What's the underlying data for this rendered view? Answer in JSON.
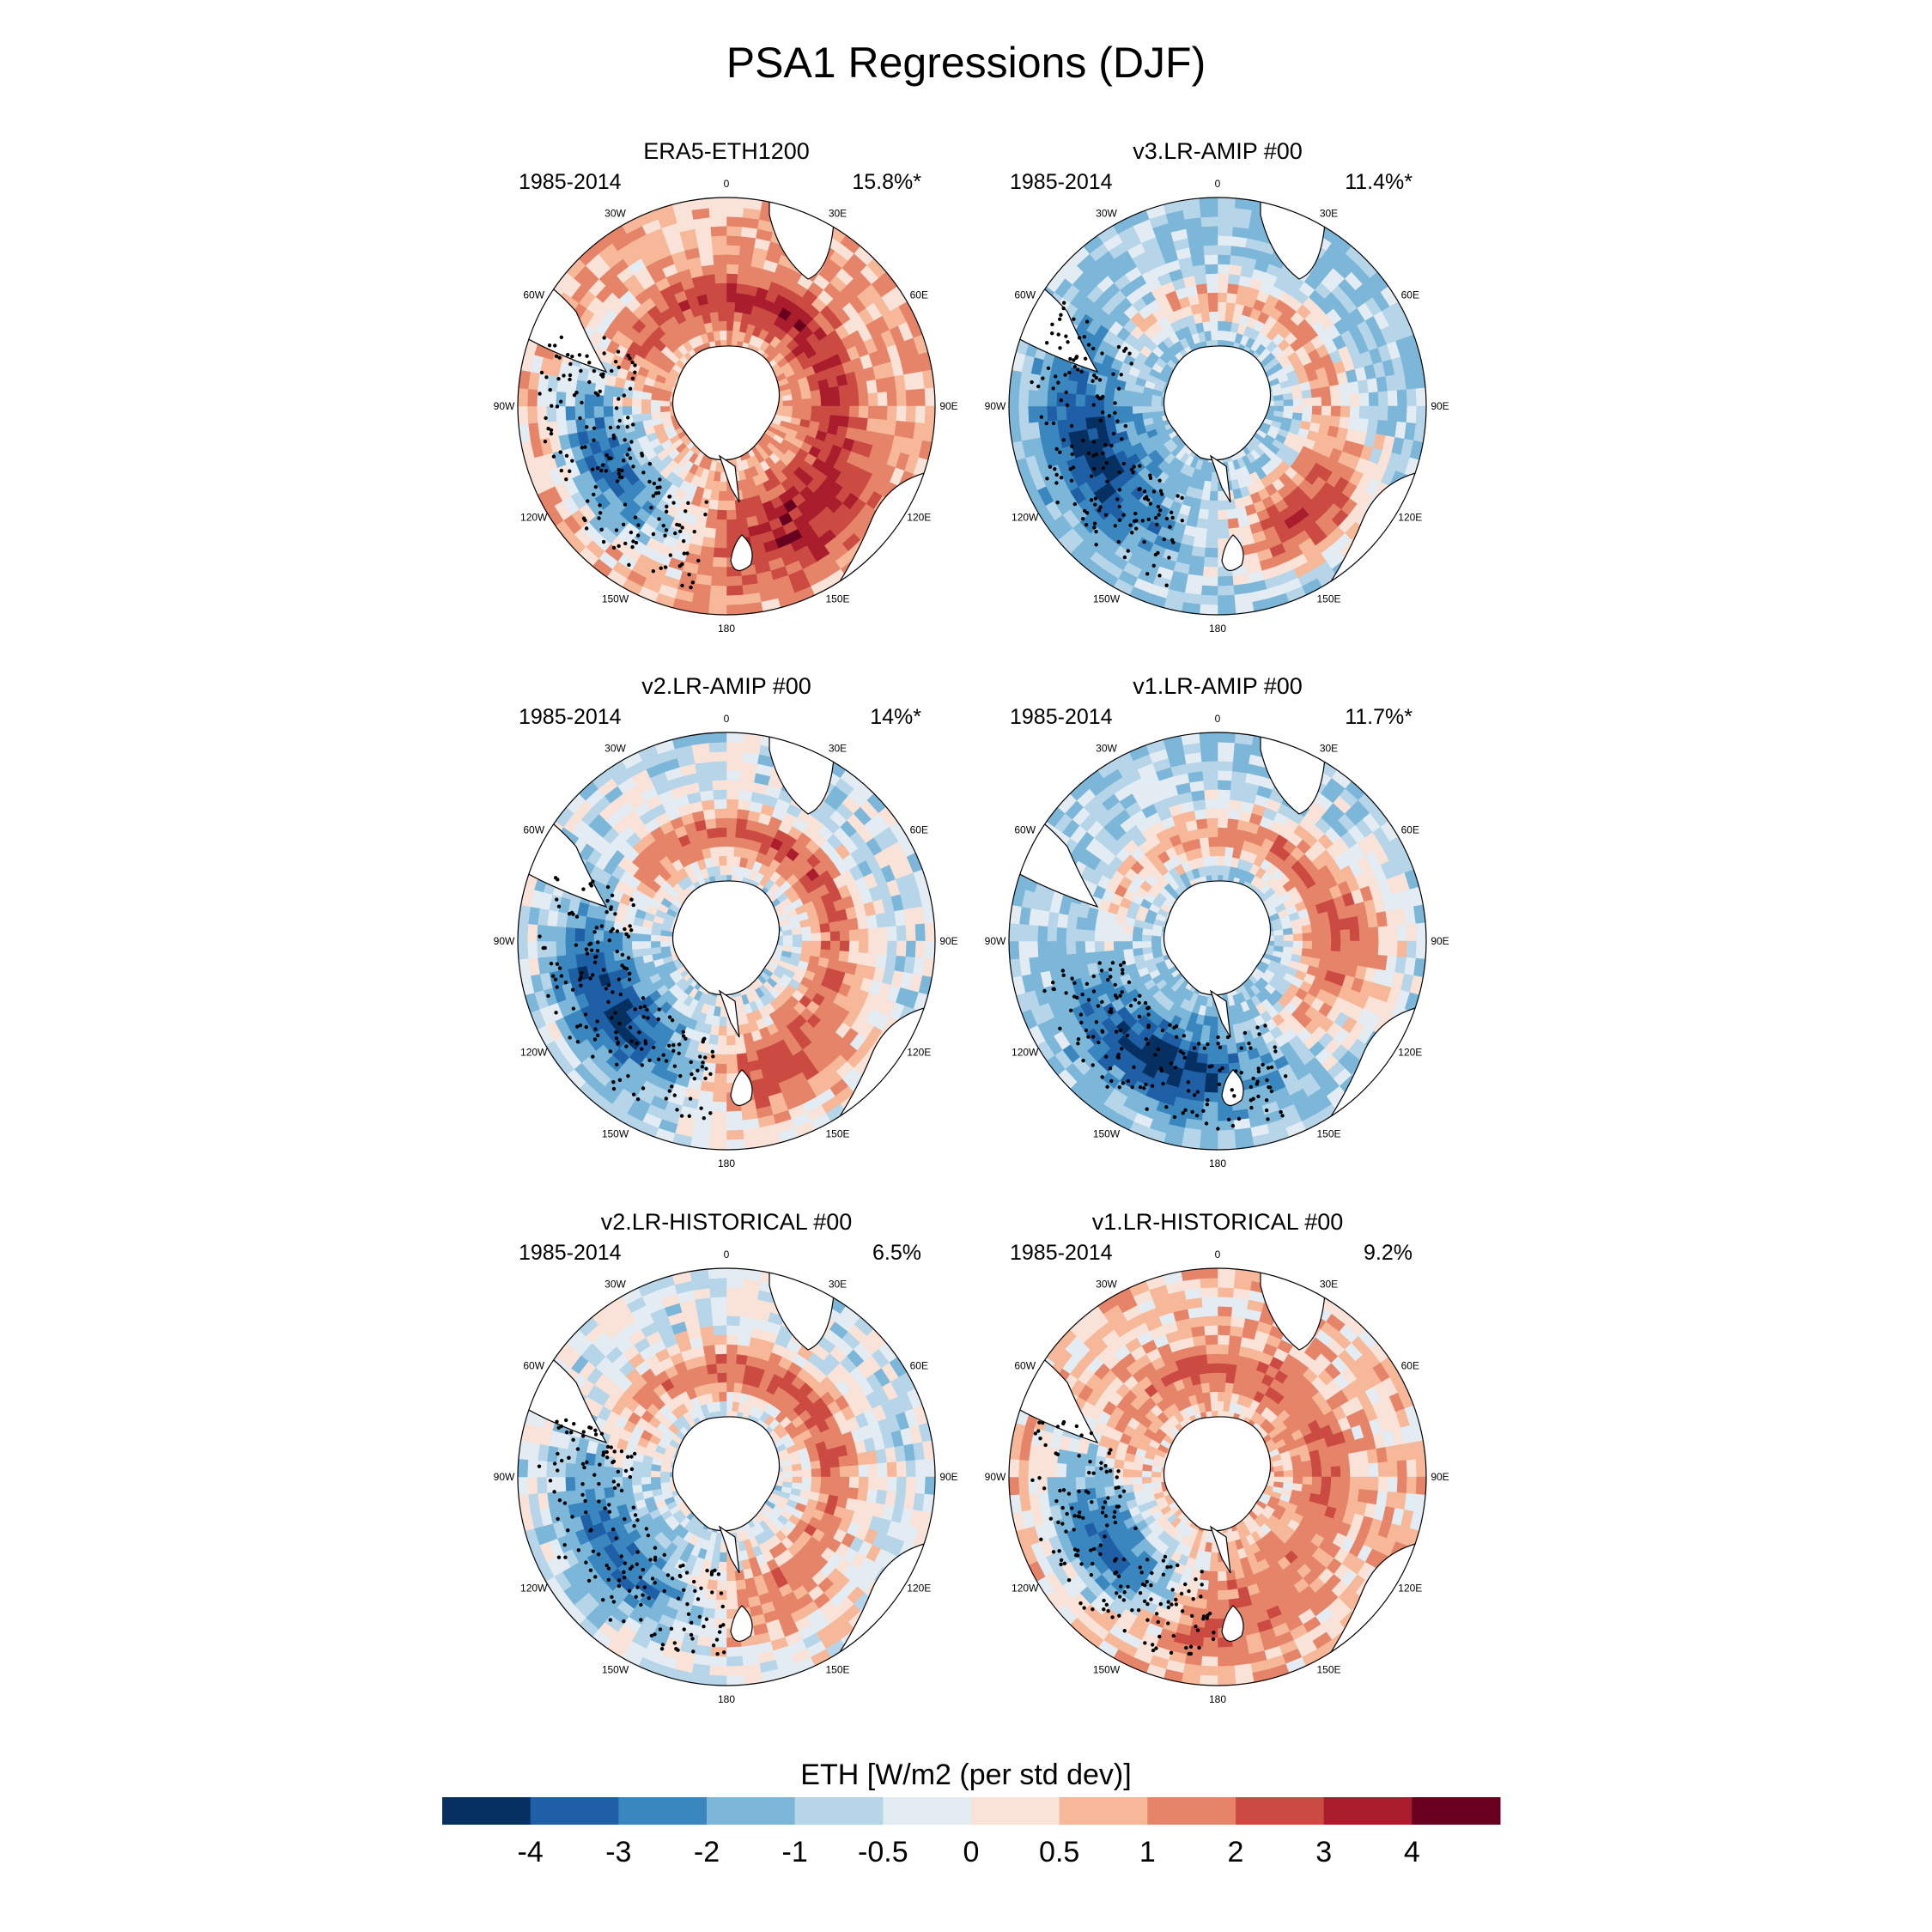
{
  "figure": {
    "title": "PSA1 Regressions (DJF)"
  },
  "chart_data": [
    {
      "type": "heatmap",
      "panel_title": "ERA5-ETH1200",
      "years": "1985-2014",
      "variance_explained": "15.8%*"
    },
    {
      "type": "heatmap",
      "panel_title": "v3.LR-AMIP  #00",
      "years": "1985-2014",
      "variance_explained": "11.4%*"
    },
    {
      "type": "heatmap",
      "panel_title": "v2.LR-AMIP  #00",
      "years": "1985-2014",
      "variance_explained": "14%*"
    },
    {
      "type": "heatmap",
      "panel_title": "v1.LR-AMIP  #00",
      "years": "1985-2014",
      "variance_explained": "11.7%*"
    },
    {
      "type": "heatmap",
      "panel_title": "v2.LR-HISTORICAL  #00",
      "years": "1985-2014",
      "variance_explained": "6.5%"
    },
    {
      "type": "heatmap",
      "panel_title": "v1.LR-HISTORICAL  #00",
      "years": "1985-2014",
      "variance_explained": "9.2%"
    }
  ],
  "longitude_labels": [
    "0",
    "30E",
    "60E",
    "90E",
    "120E",
    "150E",
    "180",
    "150W",
    "120W",
    "90W",
    "60W",
    "30W"
  ],
  "colorbar": {
    "title": "ETH [W/m2 (per std dev)]",
    "tick_labels": [
      "-4",
      "-3",
      "-2",
      "-1",
      "-0.5",
      "0",
      "0.5",
      "1",
      "2",
      "3",
      "4"
    ],
    "colors": [
      "#053061",
      "#1f5fa6",
      "#3a87bf",
      "#7cb6d8",
      "#b6d5e8",
      "#e3ecf2",
      "#f9e2d8",
      "#f6b898",
      "#e58468",
      "#cb4b43",
      "#a91d2d",
      "#67001f"
    ]
  },
  "map_colors": {
    "land": "#ffffff",
    "coast": "#000000",
    "stipple": "#000000"
  }
}
